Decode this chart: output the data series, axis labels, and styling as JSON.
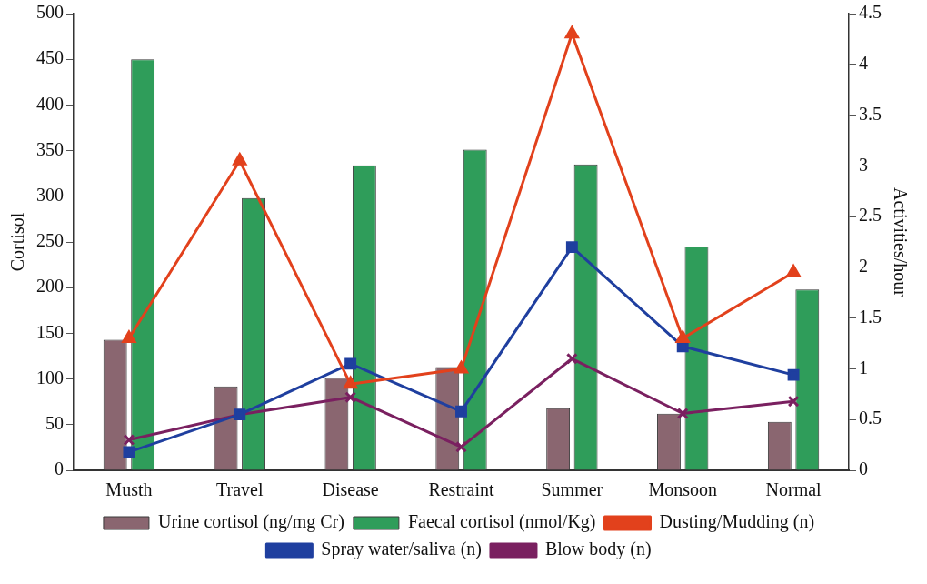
{
  "chart_data": {
    "type": "bar",
    "ylabel": "Cortisol",
    "y2label": "Activities/hour",
    "categories": [
      "Musth",
      "Travel",
      "Disease",
      "Restraint",
      "Summer",
      "Monsoon",
      "Normal"
    ],
    "series": [
      {
        "name": "Urine cortisol (ng/mg Cr)",
        "color": "#8a6670",
        "values": [
          143,
          92,
          101,
          113,
          68,
          62,
          53
        ]
      },
      {
        "name": "Faecal cortisol (nmol/Kg)",
        "color": "#2f9d5a",
        "values": [
          450,
          298,
          334,
          351,
          335,
          245,
          198
        ]
      },
      {
        "name": "Dusting/Mudding (n)",
        "type": "line",
        "axis": "y2",
        "marker": "triangle",
        "color": "#e2411c",
        "values": [
          1.3,
          3.05,
          0.85,
          1.0,
          4.3,
          1.3,
          1.95
        ]
      },
      {
        "name": "Spray water/saliva (n)",
        "type": "line",
        "axis": "y2",
        "marker": "square",
        "color": "#1f3f9f",
        "values": [
          0.18,
          0.55,
          1.05,
          0.58,
          2.2,
          1.22,
          0.94
        ]
      },
      {
        "name": "Blow body (n)",
        "type": "line",
        "axis": "y2",
        "marker": "cross",
        "color": "#7a2060",
        "values": [
          0.3,
          0.55,
          0.72,
          0.23,
          1.1,
          0.56,
          0.68
        ]
      }
    ],
    "ylim": [
      0,
      500
    ],
    "yticks": [
      0,
      50,
      100,
      150,
      200,
      250,
      300,
      350,
      400,
      450,
      500
    ],
    "y2lim": [
      0,
      4.5
    ],
    "y2ticks": [
      0,
      0.5,
      1,
      1.5,
      2,
      2.5,
      3,
      3.5,
      4,
      4.5
    ],
    "grid": false,
    "legend": "bottom"
  }
}
